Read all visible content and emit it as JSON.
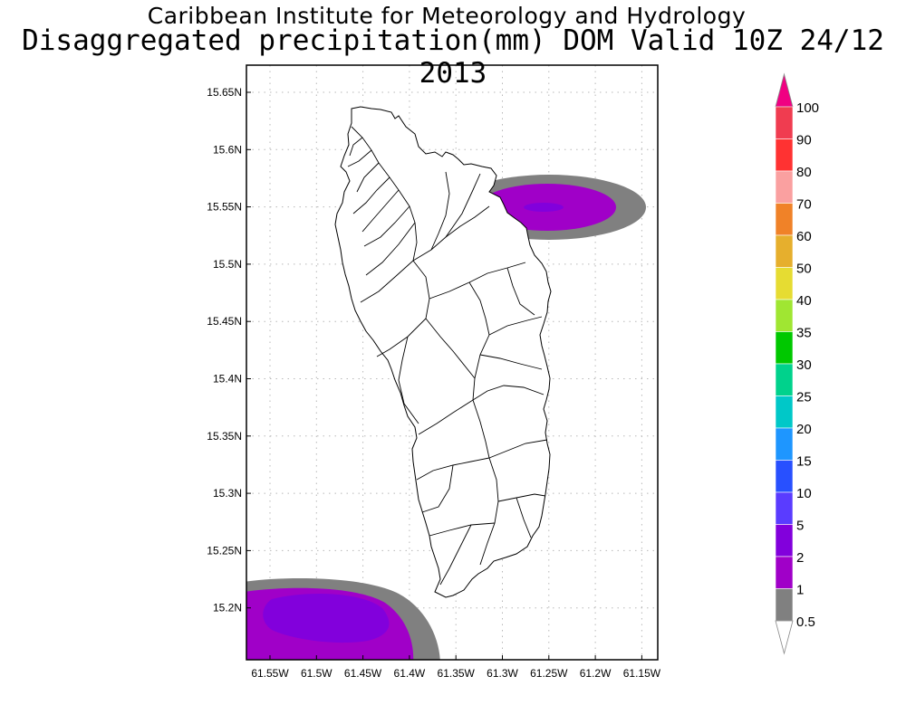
{
  "title_line1": "Caribbean Institute for Meteorology and Hydrology",
  "title_line2": "Disaggregated precipitation(mm) DOM Valid 10Z 24/12 2013",
  "map": {
    "lon_ticks": [
      "61.55W",
      "61.5W",
      "61.45W",
      "61.4W",
      "61.35W",
      "61.3W",
      "61.25W",
      "61.2W",
      "61.15W"
    ],
    "lat_ticks": [
      "15.65N",
      "15.6N",
      "15.55N",
      "15.5N",
      "15.45N",
      "15.4N",
      "15.35N",
      "15.3N",
      "15.25N",
      "15.2N"
    ],
    "grid": true,
    "precip_areas": [
      {
        "name": "north-east-cell",
        "levels_mm": [
          0.5,
          1,
          2
        ]
      },
      {
        "name": "south-west-cell",
        "levels_mm": [
          0.5,
          1,
          2
        ]
      }
    ]
  },
  "colorbar": {
    "levels": [
      "0.5",
      "1",
      "2",
      "5",
      "10",
      "15",
      "20",
      "25",
      "30",
      "35",
      "40",
      "50",
      "60",
      "70",
      "80",
      "90",
      "100"
    ],
    "colors": [
      "#808080",
      "#a000c8",
      "#8200dc",
      "#5a3cff",
      "#2850ff",
      "#1e96ff",
      "#00c8c8",
      "#00d28c",
      "#00c800",
      "#a0e632",
      "#e6dc32",
      "#e6af2d",
      "#f08228",
      "#faa0a0",
      "#ff3232",
      "#f03c50",
      "#f00082"
    ]
  }
}
